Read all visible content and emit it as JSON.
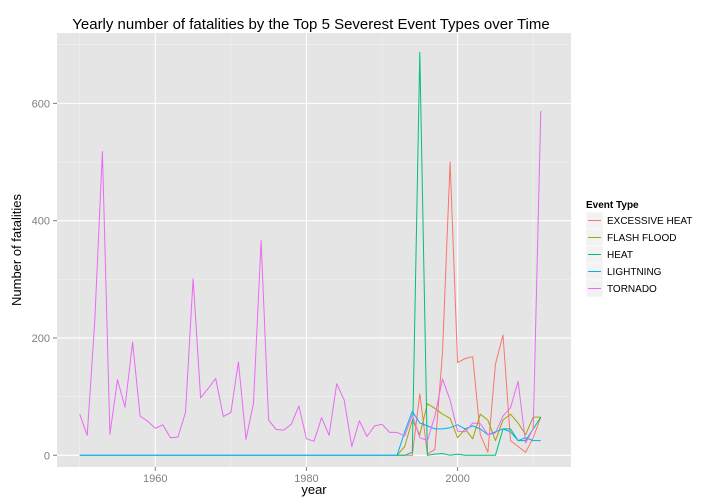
{
  "chart_data": {
    "type": "line",
    "title": "Yearly number of fatalities by the Top 5 Severest Event Types over Time",
    "xlabel": "year",
    "ylabel": "Number of fatalities",
    "xlim": [
      1947,
      2015
    ],
    "ylim": [
      -20,
      720
    ],
    "x_ticks": [
      1960,
      1980,
      2000
    ],
    "x_ticks_minor": [
      1950,
      1970,
      1990,
      2010
    ],
    "y_ticks": [
      0,
      200,
      400,
      600
    ],
    "y_ticks_minor": [
      100,
      300,
      500,
      700
    ],
    "grid": true,
    "legend": {
      "title": "Event Type",
      "placement": "right"
    },
    "series": [
      {
        "name": "EXCESSIVE HEAT",
        "color": "#F8766D",
        "x": [
          1992,
          1993,
          1994,
          1995,
          1996,
          1997,
          1998,
          1999,
          2000,
          2001,
          2002,
          2003,
          2004,
          2005,
          2006,
          2007,
          2008,
          2009,
          2010,
          2011
        ],
        "y": [
          0,
          0,
          0,
          105,
          2,
          10,
          175,
          500,
          158,
          165,
          168,
          35,
          5,
          155,
          205,
          25,
          15,
          5,
          30,
          65
        ]
      },
      {
        "name": "FLASH FLOOD",
        "color": "#A3A500",
        "x": [
          1992,
          1993,
          1994,
          1995,
          1996,
          1997,
          1998,
          1999,
          2000,
          2001,
          2002,
          2003,
          2004,
          2005,
          2006,
          2007,
          2008,
          2009,
          2010,
          2011
        ],
        "y": [
          0,
          15,
          60,
          35,
          88,
          80,
          70,
          63,
          30,
          45,
          28,
          70,
          60,
          25,
          60,
          70,
          55,
          35,
          65,
          65
        ]
      },
      {
        "name": "HEAT",
        "color": "#00BF7D",
        "x": [
          1950,
          1992,
          1993,
          1994,
          1995,
          1996,
          1997,
          1998,
          1999,
          2000,
          2001,
          2002,
          2003,
          2004,
          2005,
          2006,
          2007,
          2008,
          2009,
          2010,
          2011
        ],
        "y": [
          0,
          0,
          0,
          5,
          687,
          0,
          2,
          3,
          0,
          2,
          0,
          0,
          0,
          0,
          0,
          45,
          45,
          25,
          25,
          45,
          65
        ]
      },
      {
        "name": "LIGHTNING",
        "color": "#00B0F6",
        "x": [
          1950,
          1992,
          1993,
          1994,
          1995,
          1996,
          1997,
          1998,
          1999,
          2000,
          2001,
          2002,
          2003,
          2004,
          2005,
          2006,
          2007,
          2008,
          2009,
          2010,
          2011
        ],
        "y": [
          0,
          0,
          40,
          75,
          55,
          50,
          45,
          45,
          47,
          52,
          45,
          50,
          45,
          35,
          40,
          45,
          40,
          25,
          30,
          25,
          25
        ]
      },
      {
        "name": "TORNADO",
        "color": "#E76BF3",
        "x": [
          1950,
          1951,
          1952,
          1953,
          1954,
          1955,
          1956,
          1957,
          1958,
          1959,
          1960,
          1961,
          1962,
          1963,
          1964,
          1965,
          1966,
          1967,
          1968,
          1969,
          1970,
          1971,
          1972,
          1973,
          1974,
          1975,
          1976,
          1977,
          1978,
          1979,
          1980,
          1981,
          1982,
          1983,
          1984,
          1985,
          1986,
          1987,
          1988,
          1989,
          1990,
          1991,
          1992,
          1993,
          1994,
          1995,
          1996,
          1997,
          1998,
          1999,
          2000,
          2001,
          2002,
          2003,
          2004,
          2005,
          2006,
          2007,
          2008,
          2009,
          2010,
          2011
        ],
        "y": [
          70,
          34,
          230,
          518,
          36,
          129,
          82,
          193,
          67,
          58,
          46,
          52,
          30,
          31,
          73,
          301,
          98,
          114,
          131,
          66,
          73,
          159,
          27,
          89,
          366,
          60,
          44,
          43,
          53,
          84,
          28,
          24,
          64,
          34,
          122,
          94,
          15,
          59,
          32,
          50,
          53,
          39,
          39,
          33,
          69,
          30,
          25,
          67,
          130,
          94,
          41,
          40,
          55,
          54,
          35,
          38,
          67,
          81,
          126,
          21,
          45,
          587
        ]
      }
    ]
  }
}
